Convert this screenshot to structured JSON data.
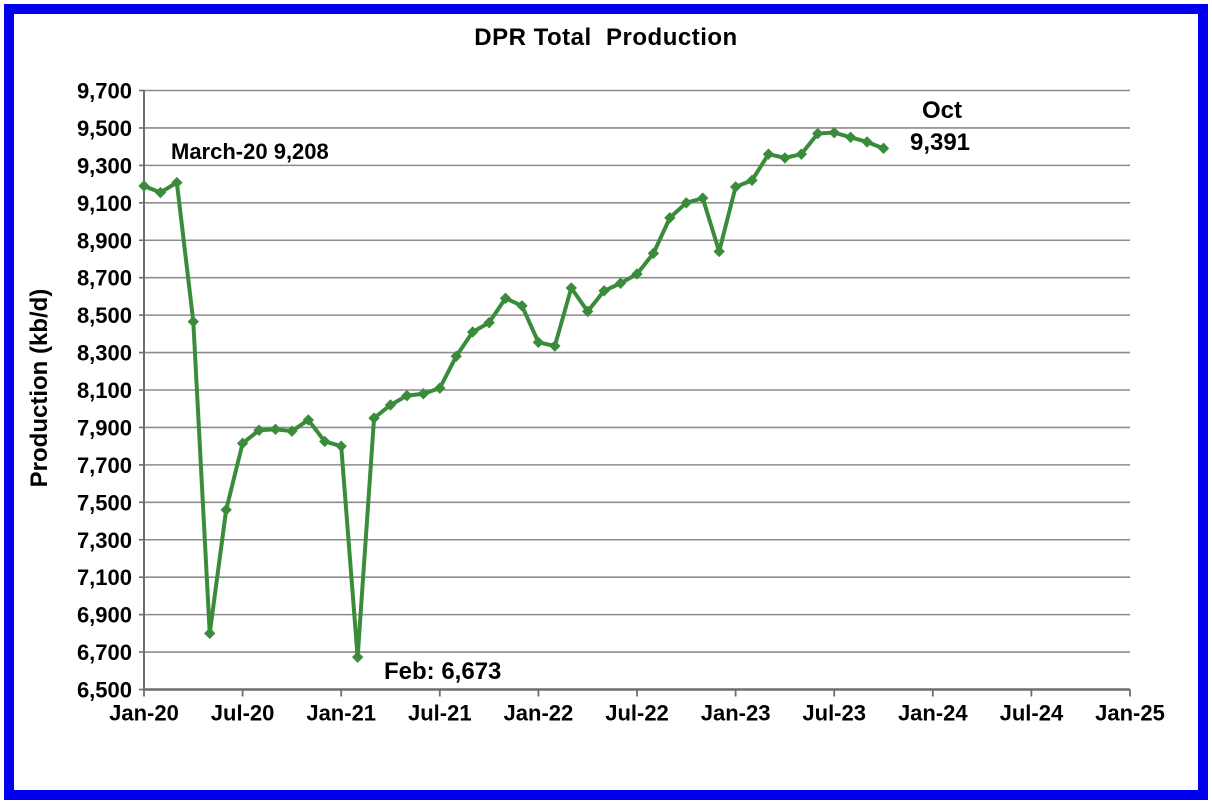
{
  "frame": {
    "border_color": "#0000ee"
  },
  "chart_data": {
    "type": "line",
    "title": "DPR Total  Production",
    "xlabel": "",
    "ylabel": "Production (kb/d)",
    "ylim": [
      6500,
      9700
    ],
    "ytick_step": 200,
    "grid": true,
    "legend": "none",
    "line_color": "#3a8b3a",
    "marker": "diamond",
    "x_range_months": [
      "Jan-20",
      "Jan-25"
    ],
    "xtick_labels": [
      "Jan-20",
      "Jul-20",
      "Jan-21",
      "Jul-21",
      "Jan-22",
      "Jul-22",
      "Jan-23",
      "Jul-23",
      "Jan-24",
      "Jul-24",
      "Jan-25"
    ],
    "ytick_labels": [
      "6,500",
      "6,700",
      "6,900",
      "7,100",
      "7,300",
      "7,500",
      "7,700",
      "7,900",
      "8,100",
      "8,300",
      "8,500",
      "8,700",
      "8,900",
      "9,100",
      "9,300",
      "9,500",
      "9,700"
    ],
    "x": [
      "Jan-20",
      "Feb-20",
      "Mar-20",
      "Apr-20",
      "May-20",
      "Jun-20",
      "Jul-20",
      "Aug-20",
      "Sep-20",
      "Oct-20",
      "Nov-20",
      "Dec-20",
      "Jan-21",
      "Feb-21",
      "Mar-21",
      "Apr-21",
      "May-21",
      "Jun-21",
      "Jul-21",
      "Aug-21",
      "Sep-21",
      "Oct-21",
      "Nov-21",
      "Dec-21",
      "Jan-22",
      "Feb-22",
      "Mar-22",
      "Apr-22",
      "May-22",
      "Jun-22",
      "Jul-22",
      "Aug-22",
      "Sep-22",
      "Oct-22",
      "Nov-22",
      "Dec-22",
      "Jan-23",
      "Feb-23",
      "Mar-23",
      "Apr-23",
      "May-23",
      "Jun-23",
      "Jul-23",
      "Aug-23",
      "Sep-23",
      "Oct-23"
    ],
    "values": [
      9190,
      9155,
      9208,
      8465,
      6800,
      7460,
      7815,
      7885,
      7890,
      7880,
      7940,
      7825,
      7800,
      6673,
      7950,
      8020,
      8070,
      8080,
      8110,
      8280,
      8410,
      8460,
      8590,
      8550,
      8355,
      8335,
      8645,
      8520,
      8630,
      8670,
      8720,
      8830,
      9020,
      9100,
      9125,
      8840,
      9185,
      9220,
      9360,
      9340,
      9360,
      9470,
      9475,
      9450,
      9425,
      9391
    ],
    "annotations": [
      {
        "text": "March-20 9,208",
        "anchor_month": "Mar-20",
        "value": 9208
      },
      {
        "text": "Feb: 6,673",
        "anchor_month": "Feb-21",
        "value": 6673
      },
      {
        "text": "Oct",
        "anchor_month": "Oct-23"
      },
      {
        "text": "9,391",
        "anchor_month": "Oct-23",
        "value": 9391
      }
    ]
  }
}
